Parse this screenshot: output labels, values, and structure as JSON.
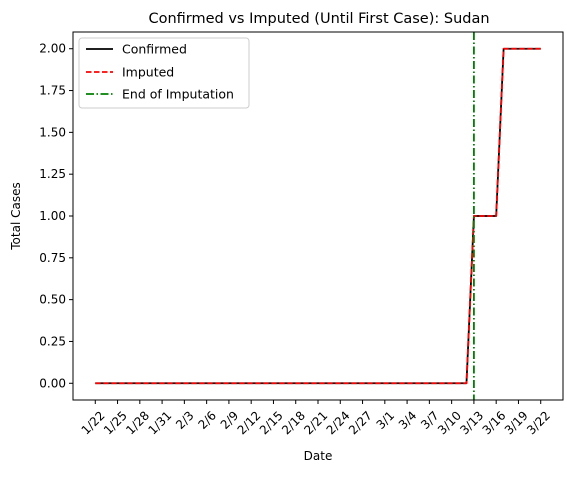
{
  "chart_data": {
    "type": "line",
    "title": "Confirmed vs Imputed (Until First Case): Sudan",
    "xlabel": "Date",
    "ylabel": "Total Cases",
    "x": [
      "1/22",
      "1/23",
      "1/24",
      "1/25",
      "1/26",
      "1/27",
      "1/28",
      "1/29",
      "1/30",
      "1/31",
      "2/1",
      "2/2",
      "2/3",
      "2/4",
      "2/5",
      "2/6",
      "2/7",
      "2/8",
      "2/9",
      "2/10",
      "2/11",
      "2/12",
      "2/13",
      "2/14",
      "2/15",
      "2/16",
      "2/17",
      "2/18",
      "2/19",
      "2/20",
      "2/21",
      "2/22",
      "2/23",
      "2/24",
      "2/25",
      "2/26",
      "2/27",
      "2/28",
      "2/29",
      "3/1",
      "3/2",
      "3/3",
      "3/4",
      "3/5",
      "3/6",
      "3/7",
      "3/8",
      "3/9",
      "3/10",
      "3/11",
      "3/12",
      "3/13",
      "3/14",
      "3/15",
      "3/16",
      "3/17",
      "3/18",
      "3/19",
      "3/20",
      "3/21",
      "3/22"
    ],
    "xticks": [
      "1/22",
      "1/25",
      "1/28",
      "1/31",
      "2/3",
      "2/6",
      "2/9",
      "2/12",
      "2/15",
      "2/18",
      "2/21",
      "2/24",
      "2/27",
      "3/1",
      "3/4",
      "3/7",
      "3/10",
      "3/13",
      "3/16",
      "3/19",
      "3/22"
    ],
    "yticks": [
      "0.00",
      "0.25",
      "0.50",
      "0.75",
      "1.00",
      "1.25",
      "1.50",
      "1.75",
      "2.00"
    ],
    "ylim": [
      -0.1,
      2.1
    ],
    "series": [
      {
        "name": "Confirmed",
        "color": "#000000",
        "style": "solid",
        "values": [
          0,
          0,
          0,
          0,
          0,
          0,
          0,
          0,
          0,
          0,
          0,
          0,
          0,
          0,
          0,
          0,
          0,
          0,
          0,
          0,
          0,
          0,
          0,
          0,
          0,
          0,
          0,
          0,
          0,
          0,
          0,
          0,
          0,
          0,
          0,
          0,
          0,
          0,
          0,
          0,
          0,
          0,
          0,
          0,
          0,
          0,
          0,
          0,
          0,
          0,
          0,
          1,
          1,
          1,
          1,
          2,
          2,
          2,
          2,
          2,
          2
        ]
      },
      {
        "name": "Imputed",
        "color": "#ff0000",
        "style": "dashed",
        "values": [
          0,
          0,
          0,
          0,
          0,
          0,
          0,
          0,
          0,
          0,
          0,
          0,
          0,
          0,
          0,
          0,
          0,
          0,
          0,
          0,
          0,
          0,
          0,
          0,
          0,
          0,
          0,
          0,
          0,
          0,
          0,
          0,
          0,
          0,
          0,
          0,
          0,
          0,
          0,
          0,
          0,
          0,
          0,
          0,
          0,
          0,
          0,
          0,
          0,
          0,
          0,
          1,
          1,
          1,
          1,
          2,
          2,
          2,
          2,
          2,
          2
        ]
      }
    ],
    "vline": {
      "name": "End of Imputation",
      "x": "3/13",
      "color": "#008000",
      "style": "dashdot"
    },
    "legend_position": "upper left",
    "grid": false
  }
}
